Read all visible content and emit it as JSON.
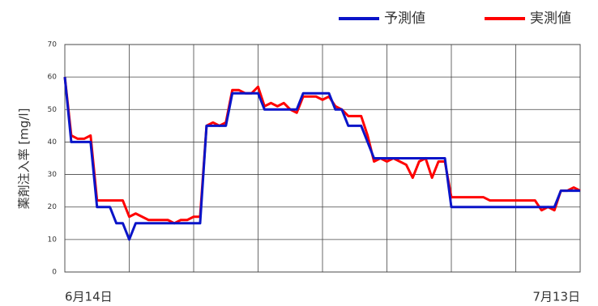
{
  "chart_data": {
    "type": "line",
    "y_label": "薬剤注入率 [mg/l]",
    "categories": [
      "6月14日",
      null,
      null,
      null,
      null,
      null,
      null,
      null,
      null,
      null,
      null,
      null,
      null,
      null,
      null,
      null,
      null,
      null,
      null,
      null,
      null,
      null,
      null,
      null,
      null,
      null,
      null,
      null,
      null,
      null,
      null,
      null,
      null,
      null,
      null,
      null,
      null,
      null,
      null,
      null,
      null,
      null,
      null,
      null,
      null,
      null,
      null,
      null,
      null,
      null,
      null,
      null,
      null,
      null,
      null,
      null,
      null,
      null,
      null,
      null,
      null,
      null,
      null,
      null,
      null,
      null,
      null,
      null,
      null,
      null,
      null,
      null,
      null,
      null,
      null,
      null,
      null,
      null,
      null,
      null,
      "7月13日"
    ],
    "series": [
      {
        "name": "予測値",
        "color": "#0a14c8",
        "values": [
          60,
          40,
          40,
          40,
          40,
          20,
          20,
          20,
          15,
          15,
          10,
          15,
          15,
          15,
          15,
          15,
          15,
          15,
          15,
          15,
          15,
          15,
          45,
          45,
          45,
          45,
          55,
          55,
          55,
          55,
          55,
          50,
          50,
          50,
          50,
          50,
          50,
          55,
          55,
          55,
          55,
          55,
          50,
          50,
          45,
          45,
          45,
          40,
          35,
          35,
          35,
          35,
          35,
          35,
          35,
          35,
          35,
          35,
          35,
          35,
          20,
          20,
          20,
          20,
          20,
          20,
          20,
          20,
          20,
          20,
          20,
          20,
          20,
          20,
          20,
          20,
          20,
          25,
          25,
          25,
          25
        ]
      },
      {
        "name": "実測値",
        "color": "#ff0000",
        "values": [
          60,
          42,
          41,
          41,
          42,
          22,
          22,
          22,
          22,
          22,
          17,
          18,
          17,
          16,
          16,
          16,
          16,
          15,
          16,
          16,
          17,
          17,
          45,
          46,
          45,
          46,
          56,
          56,
          55,
          55,
          57,
          51,
          52,
          51,
          52,
          50,
          49,
          54,
          54,
          54,
          53,
          54,
          51,
          50,
          48,
          48,
          48,
          42,
          34,
          35,
          34,
          35,
          34,
          33,
          29,
          34,
          35,
          29,
          34,
          34,
          23,
          23,
          23,
          23,
          23,
          23,
          22,
          22,
          22,
          22,
          22,
          22,
          22,
          22,
          19,
          20,
          19,
          25,
          25,
          26,
          25
        ]
      }
    ],
    "ylim": [
      0,
      70
    ],
    "yticks": [
      0,
      10,
      20,
      30,
      40,
      50,
      60,
      70
    ],
    "grid": true
  }
}
